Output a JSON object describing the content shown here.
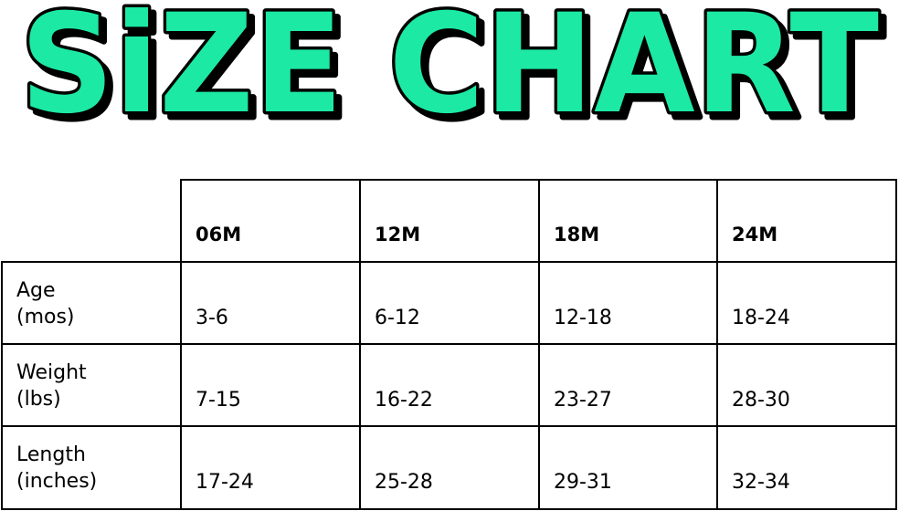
{
  "title": "SiZE CHART",
  "colors": {
    "title_fill": "#1DE9A4",
    "title_outline": "#000000",
    "grid": "#000000"
  },
  "chart_data": {
    "type": "table",
    "columns": [
      "06M",
      "12M",
      "18M",
      "24M"
    ],
    "rows": [
      {
        "label_line1": "Age",
        "label_line2": "(mos)",
        "values": [
          "3-6",
          "6-12",
          "12-18",
          "18-24"
        ]
      },
      {
        "label_line1": "Weight",
        "label_line2": "(lbs)",
        "values": [
          "7-15",
          "16-22",
          "23-27",
          "28-30"
        ]
      },
      {
        "label_line1": "Length",
        "label_line2": "(inches)",
        "values": [
          "17-24",
          "25-28",
          "29-31",
          "32-34"
        ]
      }
    ]
  }
}
